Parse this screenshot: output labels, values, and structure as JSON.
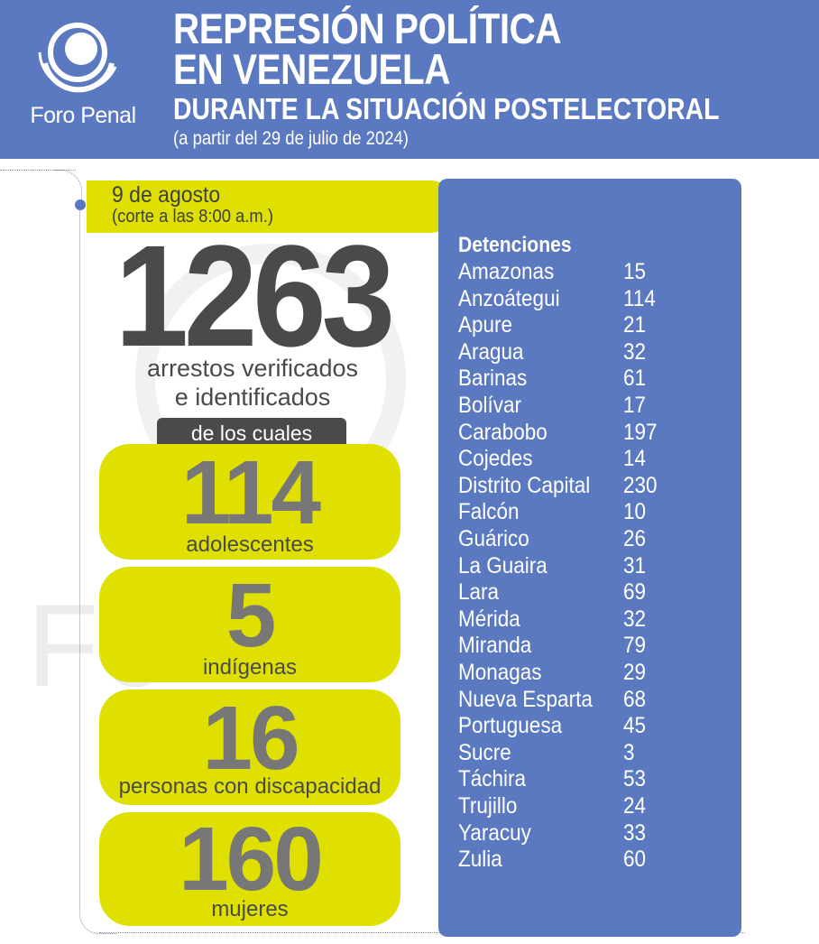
{
  "header": {
    "logo_text": "Foro Penal",
    "title_line1": "REPRESIÓN POLÍTICA",
    "title_line2": "EN VENEZUELA",
    "subtitle": "DURANTE LA SITUACIÓN POSTELECTORAL",
    "note": "(a partir del 29 de julio de 2024)"
  },
  "date": {
    "main": "9 de agosto",
    "sub": "(corte a las 8:00 a.m.)"
  },
  "watermark": "Foro Penal",
  "total": {
    "value": "1263",
    "label_line1": "arrestos verificados",
    "label_line2": "e identificados",
    "of_which": "de los cuales"
  },
  "stats": [
    {
      "value": "114",
      "label": "adolescentes"
    },
    {
      "value": "5",
      "label": "indígenas"
    },
    {
      "value": "16",
      "label": "personas con discapacidad"
    },
    {
      "value": "160",
      "label": "mujeres"
    }
  ],
  "detentions": {
    "title": "Detenciones",
    "rows": [
      {
        "state": "Amazonas",
        "count": "15"
      },
      {
        "state": "Anzoátegui",
        "count": "114"
      },
      {
        "state": "Apure",
        "count": "21"
      },
      {
        "state": "Aragua",
        "count": "32"
      },
      {
        "state": "Barinas",
        "count": "61"
      },
      {
        "state": "Bolívar",
        "count": "17"
      },
      {
        "state": "Carabobo",
        "count": "197"
      },
      {
        "state": "Cojedes",
        "count": "14"
      },
      {
        "state": "Distrito Capital",
        "count": "230"
      },
      {
        "state": "Falcón",
        "count": "10"
      },
      {
        "state": "Guárico",
        "count": "26"
      },
      {
        "state": "La Guaira",
        "count": "31"
      },
      {
        "state": "Lara",
        "count": "69"
      },
      {
        "state": "Mérida",
        "count": "32"
      },
      {
        "state": "Miranda",
        "count": "79"
      },
      {
        "state": "Monagas",
        "count": "29"
      },
      {
        "state": "Nueva Esparta",
        "count": "68"
      },
      {
        "state": "Portuguesa",
        "count": "45"
      },
      {
        "state": "Sucre",
        "count": "3"
      },
      {
        "state": "Táchira",
        "count": "53"
      },
      {
        "state": "Trujillo",
        "count": "24"
      },
      {
        "state": "Yaracuy",
        "count": "33"
      },
      {
        "state": "Zulia",
        "count": "60"
      }
    ]
  },
  "colors": {
    "header_blue": "#5b79c0",
    "accent_yellow": "#dfe000",
    "dark_gray": "#4a4a4a",
    "number_gray": "#777777"
  }
}
